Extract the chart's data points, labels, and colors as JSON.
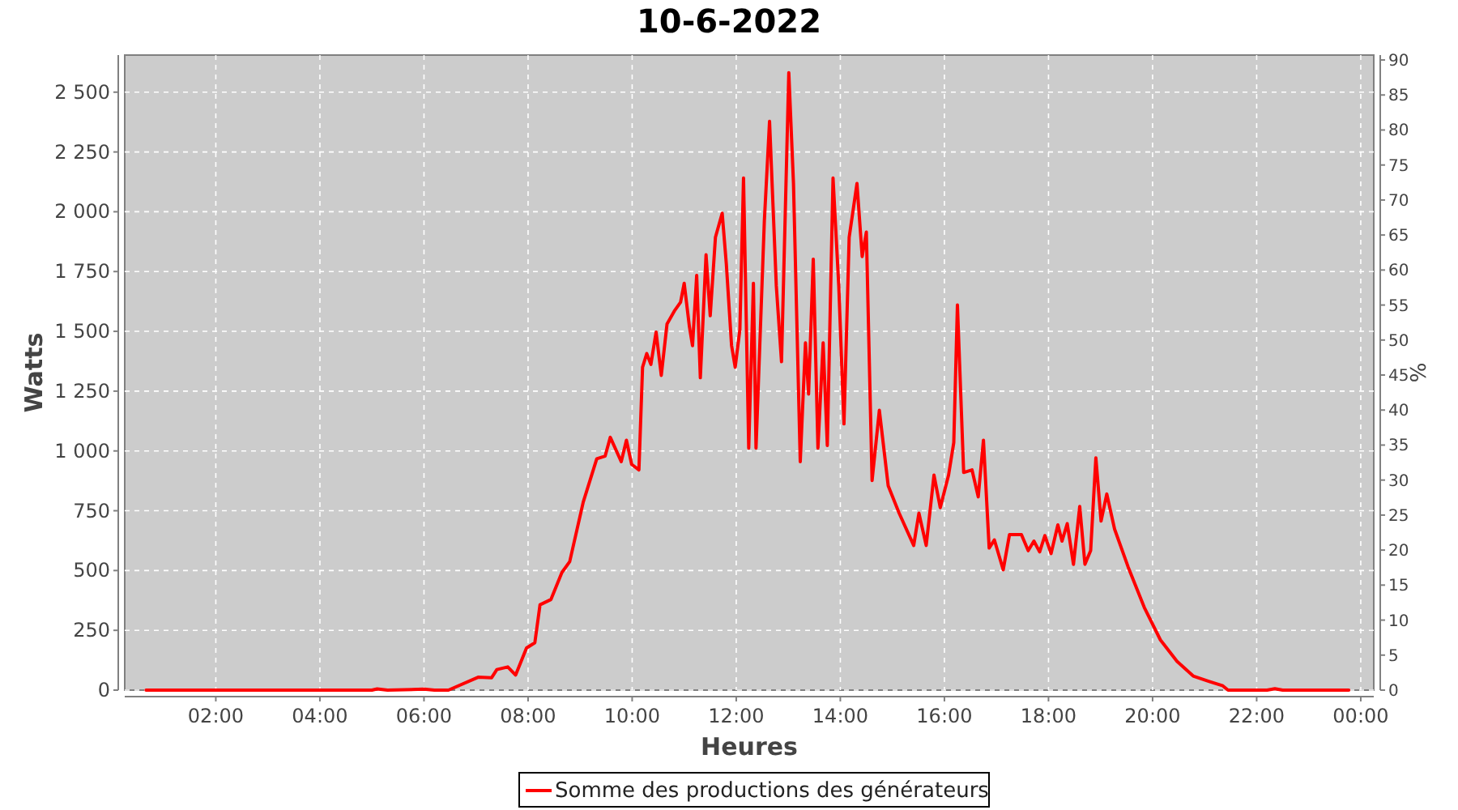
{
  "chart_data": {
    "type": "line",
    "title": "10-6-2022",
    "xlabel": "Heures",
    "ylabel": "Watts",
    "y2label": "%",
    "xlim": [
      0.25,
      24.25
    ],
    "xticks": [
      {
        "value": 2,
        "label": "02:00"
      },
      {
        "value": 4,
        "label": "04:00"
      },
      {
        "value": 6,
        "label": "06:00"
      },
      {
        "value": 8,
        "label": "08:00"
      },
      {
        "value": 10,
        "label": "10:00"
      },
      {
        "value": 12,
        "label": "12:00"
      },
      {
        "value": 14,
        "label": "14:00"
      },
      {
        "value": 16,
        "label": "16:00"
      },
      {
        "value": 18,
        "label": "18:00"
      },
      {
        "value": 20,
        "label": "20:00"
      },
      {
        "value": 22,
        "label": "22:00"
      },
      {
        "value": 24,
        "label": "00:00"
      }
    ],
    "ylim": [
      0,
      2655
    ],
    "yticks": [
      0,
      250,
      500,
      750,
      {
        "value": 1000,
        "label": "1 000"
      },
      {
        "value": 1250,
        "label": "1 250"
      },
      {
        "value": 1500,
        "label": "1 500"
      },
      {
        "value": 1750,
        "label": "1 750"
      },
      {
        "value": 2000,
        "label": "2 000"
      },
      {
        "value": 2250,
        "label": "2 250"
      },
      {
        "value": 2500,
        "label": "2 500"
      }
    ],
    "y2lim": [
      0,
      90.7
    ],
    "y2ticks": [
      0,
      5,
      10,
      15,
      20,
      25,
      30,
      35,
      40,
      45,
      50,
      55,
      60,
      65,
      70,
      75,
      80,
      85,
      90
    ],
    "grid": true,
    "legend": "bottom",
    "marker": "none",
    "line_style": "solid",
    "series": [
      {
        "name": "Somme des productions des  générateurs",
        "color": "#ff0000",
        "x": [
          0.66,
          5.0,
          5.1,
          5.3,
          6.0,
          6.2,
          6.47,
          7.04,
          7.3,
          7.4,
          7.61,
          7.76,
          7.97,
          8.13,
          8.23,
          8.44,
          8.65,
          8.8,
          9.06,
          9.32,
          9.48,
          9.58,
          9.79,
          9.89,
          9.99,
          10.13,
          10.2,
          10.28,
          10.36,
          10.46,
          10.56,
          10.67,
          10.82,
          10.93,
          11.0,
          11.1,
          11.16,
          11.24,
          11.31,
          11.42,
          11.5,
          11.6,
          11.73,
          11.81,
          11.91,
          11.98,
          12.07,
          12.14,
          12.24,
          12.33,
          12.38,
          12.54,
          12.64,
          12.77,
          12.87,
          13.01,
          13.1,
          13.23,
          13.33,
          13.39,
          13.48,
          13.57,
          13.67,
          13.75,
          13.86,
          13.97,
          14.07,
          14.17,
          14.32,
          14.42,
          14.5,
          14.61,
          14.75,
          14.92,
          15.13,
          15.41,
          15.51,
          15.65,
          15.8,
          15.92,
          16.08,
          16.18,
          16.25,
          16.37,
          16.53,
          16.65,
          16.75,
          16.86,
          16.96,
          17.13,
          17.25,
          17.48,
          17.61,
          17.72,
          17.83,
          17.93,
          18.05,
          18.18,
          18.26,
          18.36,
          18.48,
          18.6,
          18.7,
          18.81,
          18.91,
          19.01,
          19.12,
          19.27,
          19.53,
          19.84,
          20.15,
          20.47,
          20.78,
          21.09,
          21.35,
          21.45,
          22.2,
          22.35,
          22.5,
          23.77
        ],
        "values": [
          0,
          0,
          5,
          0,
          4,
          0,
          0,
          54,
          52,
          86,
          97,
          63,
          176,
          198,
          357,
          379,
          492,
          537,
          786,
          967,
          978,
          1057,
          955,
          1045,
          944,
          921,
          1350,
          1407,
          1362,
          1497,
          1316,
          1531,
          1588,
          1622,
          1701,
          1520,
          1440,
          1734,
          1306,
          1820,
          1565,
          1893,
          1994,
          1780,
          1441,
          1350,
          1508,
          2141,
          1012,
          1701,
          1012,
          1961,
          2378,
          1690,
          1373,
          2581,
          2118,
          955,
          1452,
          1238,
          1802,
          1012,
          1452,
          1023,
          2141,
          1690,
          1113,
          1893,
          2118,
          1813,
          1915,
          876,
          1170,
          854,
          740,
          605,
          740,
          605,
          899,
          763,
          899,
          1035,
          1610,
          910,
          921,
          808,
          1045,
          594,
          628,
          503,
          650,
          650,
          583,
          623,
          578,
          646,
          571,
          691,
          623,
          696,
          526,
          768,
          526,
          583,
          971,
          707,
          820,
          673,
          515,
          346,
          210,
          120,
          59,
          36,
          18,
          0,
          0,
          6,
          0,
          0
        ]
      }
    ]
  }
}
